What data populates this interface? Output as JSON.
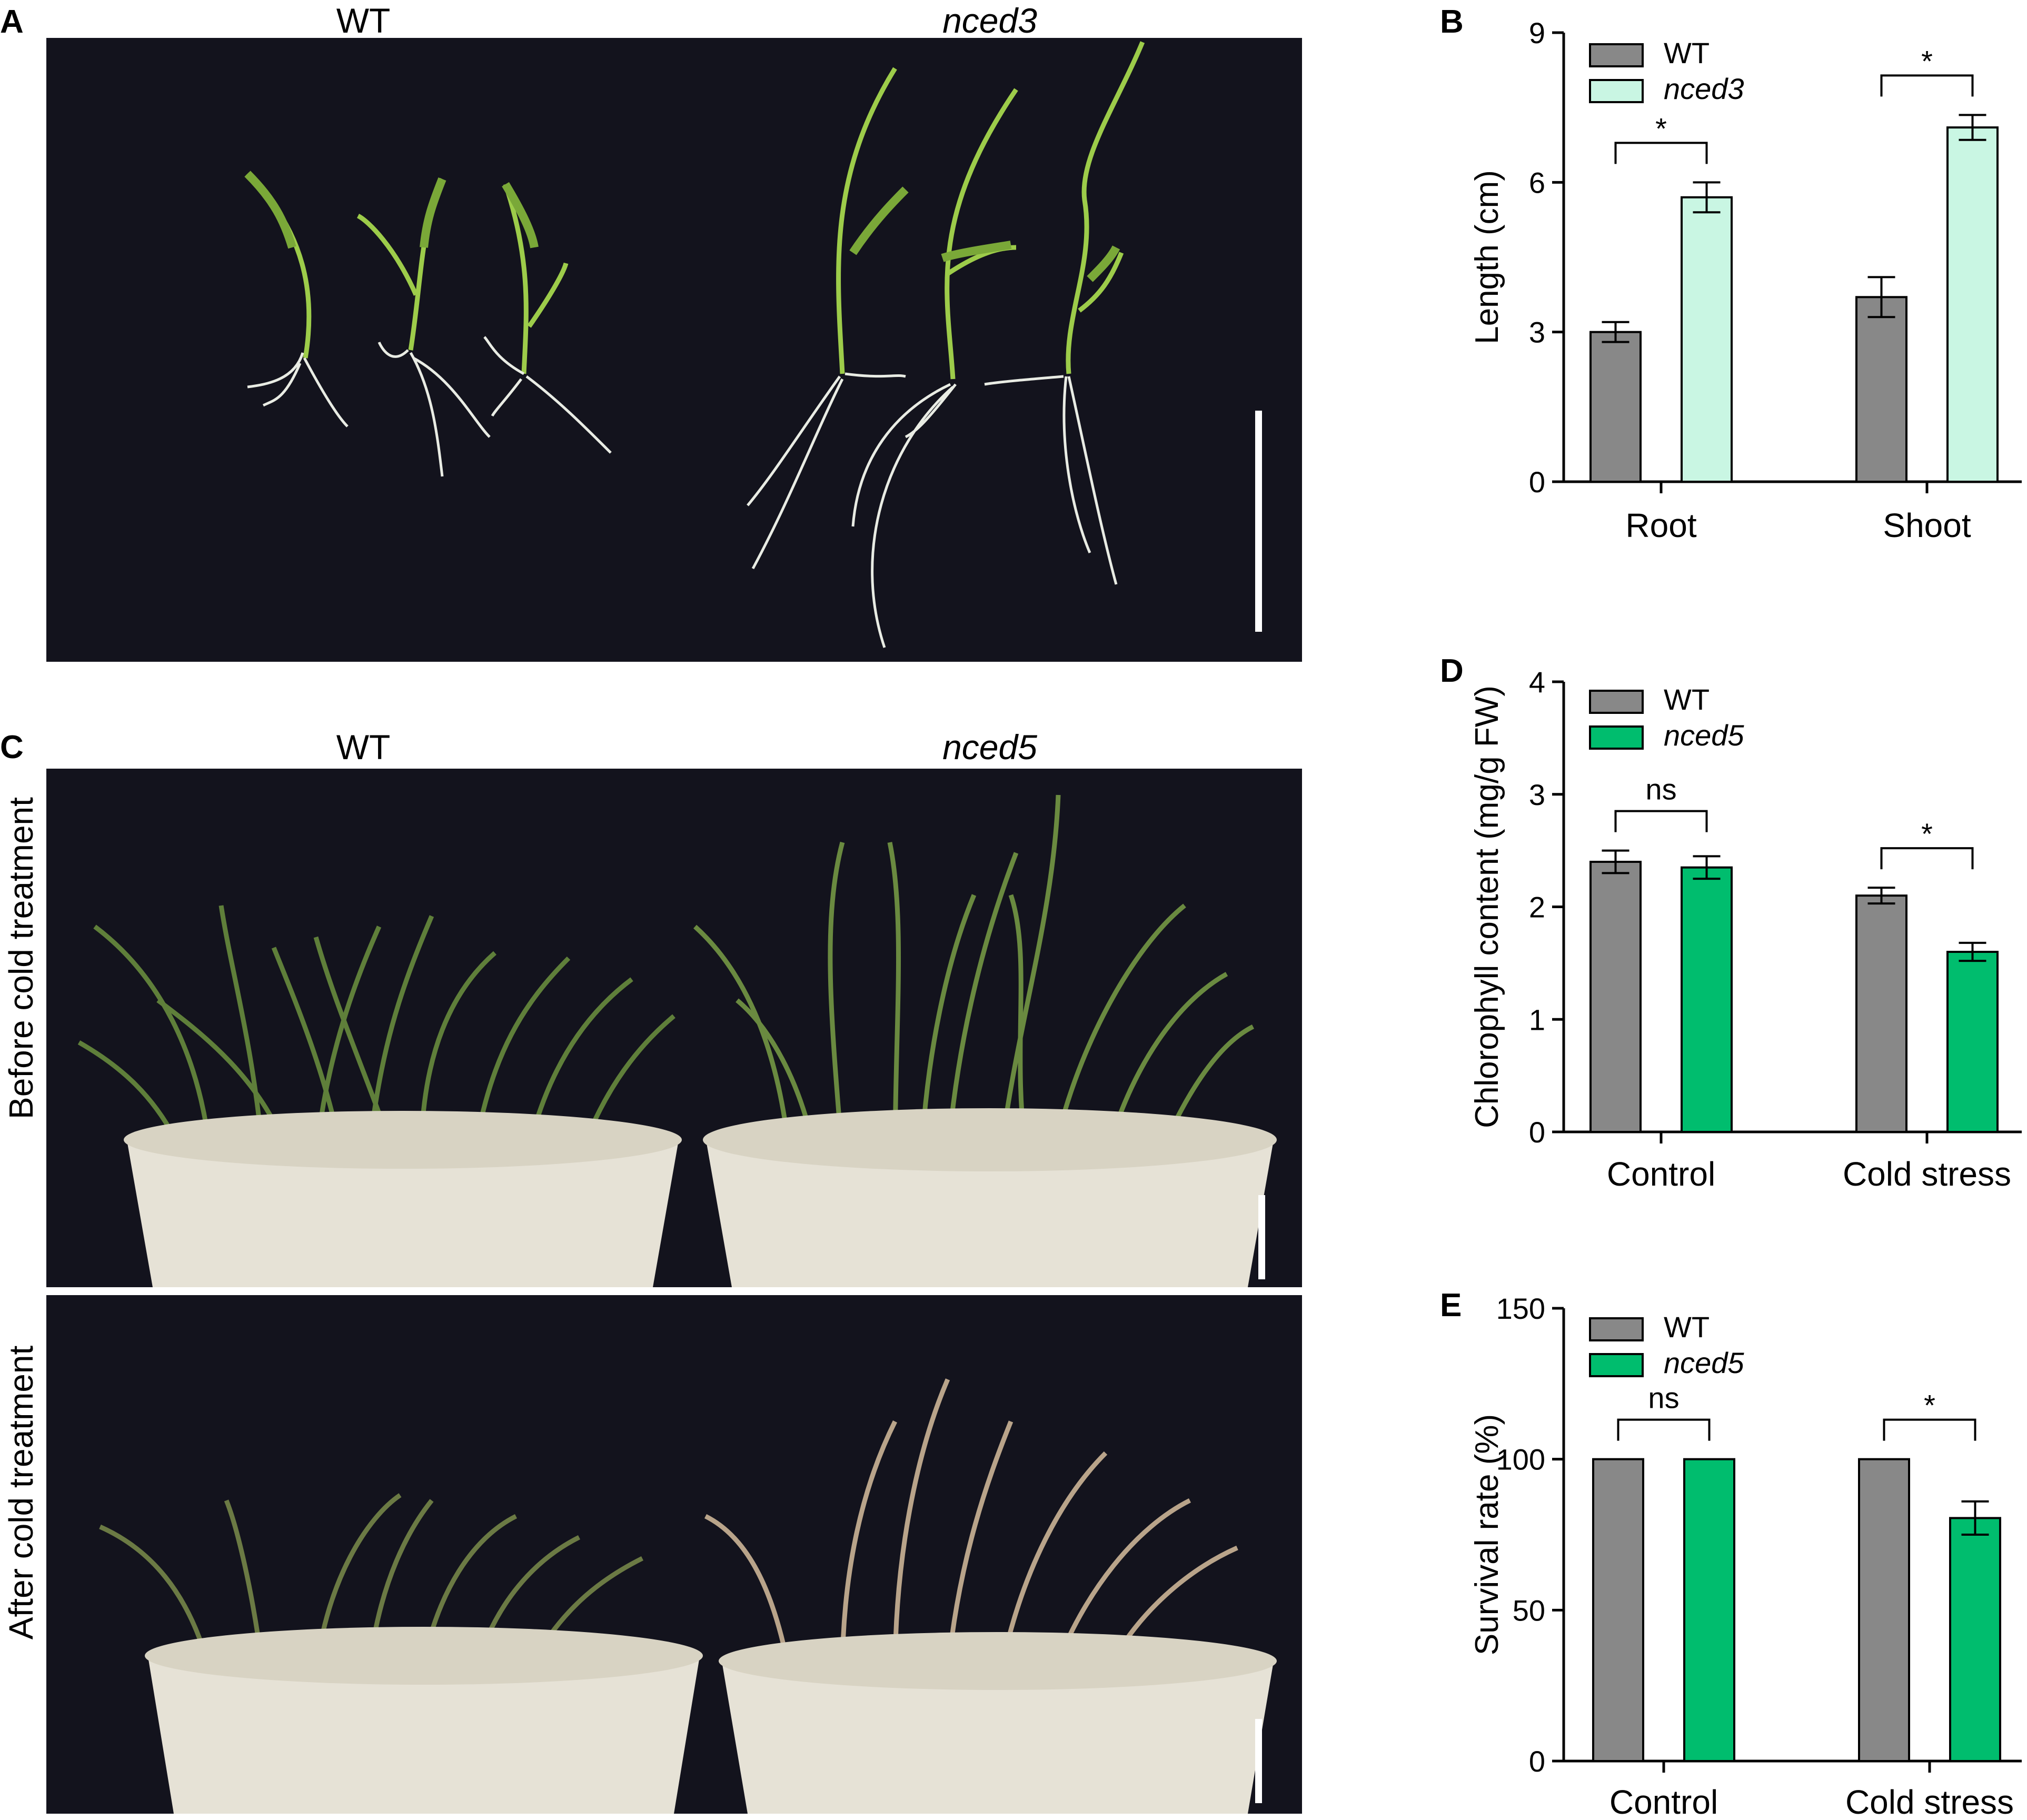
{
  "panel_labels": {
    "a": "A",
    "b": "B",
    "c": "C",
    "d": "D",
    "e": "E"
  },
  "photo_a": {
    "title_left": "WT",
    "title_right": "nced3"
  },
  "photo_c": {
    "title_left": "WT",
    "title_right": "nced5",
    "row_top_label": "Before cold treatment",
    "row_bottom_label": "After cold treatment"
  },
  "colors": {
    "wt": "#9b9a9f",
    "nced3": "#c9f6e3",
    "nced5": "#00bd6e",
    "photo_bg": "#13131d",
    "plant": "#5f7f3a",
    "pot": "#e6e2d6"
  },
  "chart_data": [
    {
      "type": "bar",
      "panel": "B",
      "categories": [
        "Root",
        "Shoot"
      ],
      "series": [
        {
          "name": "WT",
          "values": [
            3.0,
            3.7
          ],
          "errors": [
            0.2,
            0.4
          ]
        },
        {
          "name": "nced3",
          "values": [
            5.7,
            7.1
          ],
          "errors": [
            0.3,
            0.25
          ]
        }
      ],
      "significance": [
        "*",
        "*"
      ],
      "ylabel": "Length (cm)",
      "ylim": [
        0,
        9
      ],
      "yticks": [
        "0",
        "3",
        "6",
        "9"
      ],
      "legend_position": "top-left"
    },
    {
      "type": "bar",
      "panel": "D",
      "categories": [
        "Control",
        "Cold stress"
      ],
      "series": [
        {
          "name": "WT",
          "values": [
            2.4,
            2.1
          ],
          "errors": [
            0.1,
            0.07
          ]
        },
        {
          "name": "nced5",
          "values": [
            2.35,
            1.6
          ],
          "errors": [
            0.1,
            0.08
          ]
        }
      ],
      "significance": [
        "ns",
        "*"
      ],
      "ylabel": "Chlorophyll content (mg/g FW)",
      "ylim": [
        0,
        4
      ],
      "yticks": [
        "0",
        "1",
        "2",
        "3",
        "4"
      ],
      "legend_position": "top-left"
    },
    {
      "type": "bar",
      "panel": "E",
      "categories": [
        "Control",
        "Cold stress"
      ],
      "series": [
        {
          "name": "WT",
          "values": [
            100,
            100
          ],
          "errors": [
            0,
            0
          ]
        },
        {
          "name": "nced5",
          "values": [
            100,
            80.5
          ],
          "errors": [
            0,
            5.5
          ]
        }
      ],
      "significance": [
        "ns",
        "*"
      ],
      "ylabel": "Survival rate (%)",
      "ylim": [
        0,
        150
      ],
      "yticks": [
        "0",
        "50",
        "100",
        "150"
      ],
      "legend_position": "top-left"
    }
  ]
}
